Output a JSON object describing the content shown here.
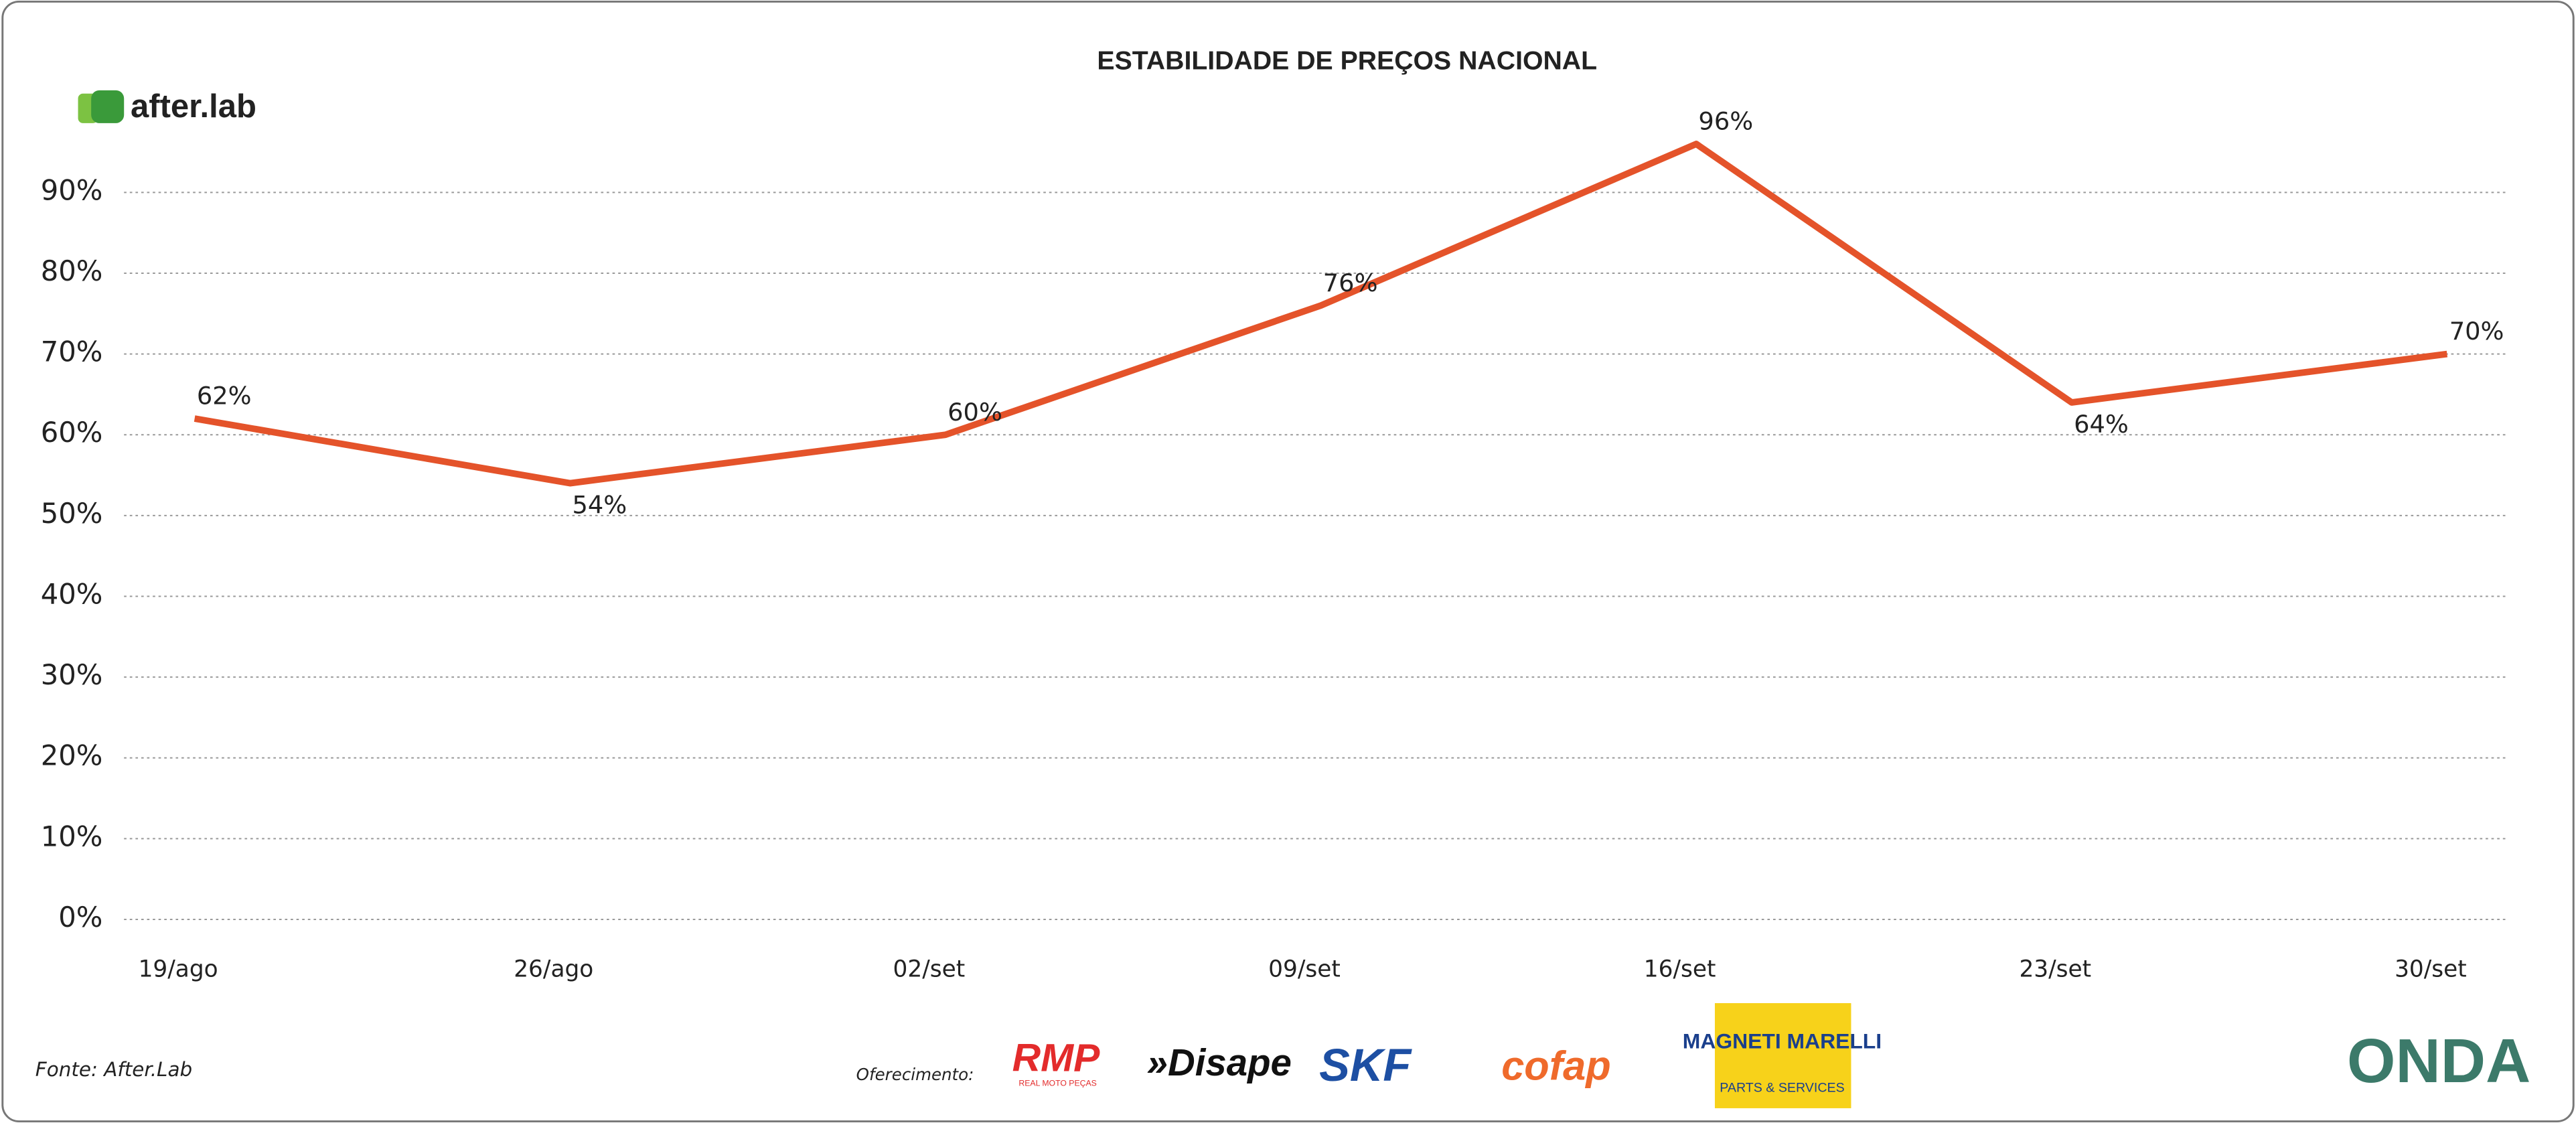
{
  "chart_data": {
    "type": "line",
    "title": "ESTABILIDADE DE PREÇOS NACIONAL",
    "categories": [
      "19/ago",
      "26/ago",
      "02/set",
      "09/set",
      "16/set",
      "23/set",
      "30/set"
    ],
    "values": [
      62,
      54,
      60,
      76,
      96,
      64,
      70
    ],
    "value_labels": [
      "62%",
      "54%",
      "60%",
      "76%",
      "96%",
      "64%",
      "70%"
    ],
    "color": "#e4532a",
    "ylim": [
      0,
      100
    ],
    "yticks": [
      {
        "value": 0,
        "label": "0%"
      },
      {
        "value": 10,
        "label": "10%"
      },
      {
        "value": 20,
        "label": "20%"
      },
      {
        "value": 30,
        "label": "30%"
      },
      {
        "value": 40,
        "label": "40%"
      },
      {
        "value": 50,
        "label": "50%"
      },
      {
        "value": 60,
        "label": "60%"
      },
      {
        "value": 70,
        "label": "70%"
      },
      {
        "value": 80,
        "label": "80%"
      },
      {
        "value": 90,
        "label": "90%"
      }
    ],
    "grid": true
  },
  "brand": "after.lab",
  "source": "Fonte: After.Lab",
  "sponsor_intro": "Oferecimento:",
  "sponsors": [
    "RMP",
    "REAL MOTO PEÇAS",
    "»Disape",
    "SKF",
    "cofap",
    "MAGNETI MARELLI",
    "PARTS & SERVICES",
    "ONDA"
  ]
}
